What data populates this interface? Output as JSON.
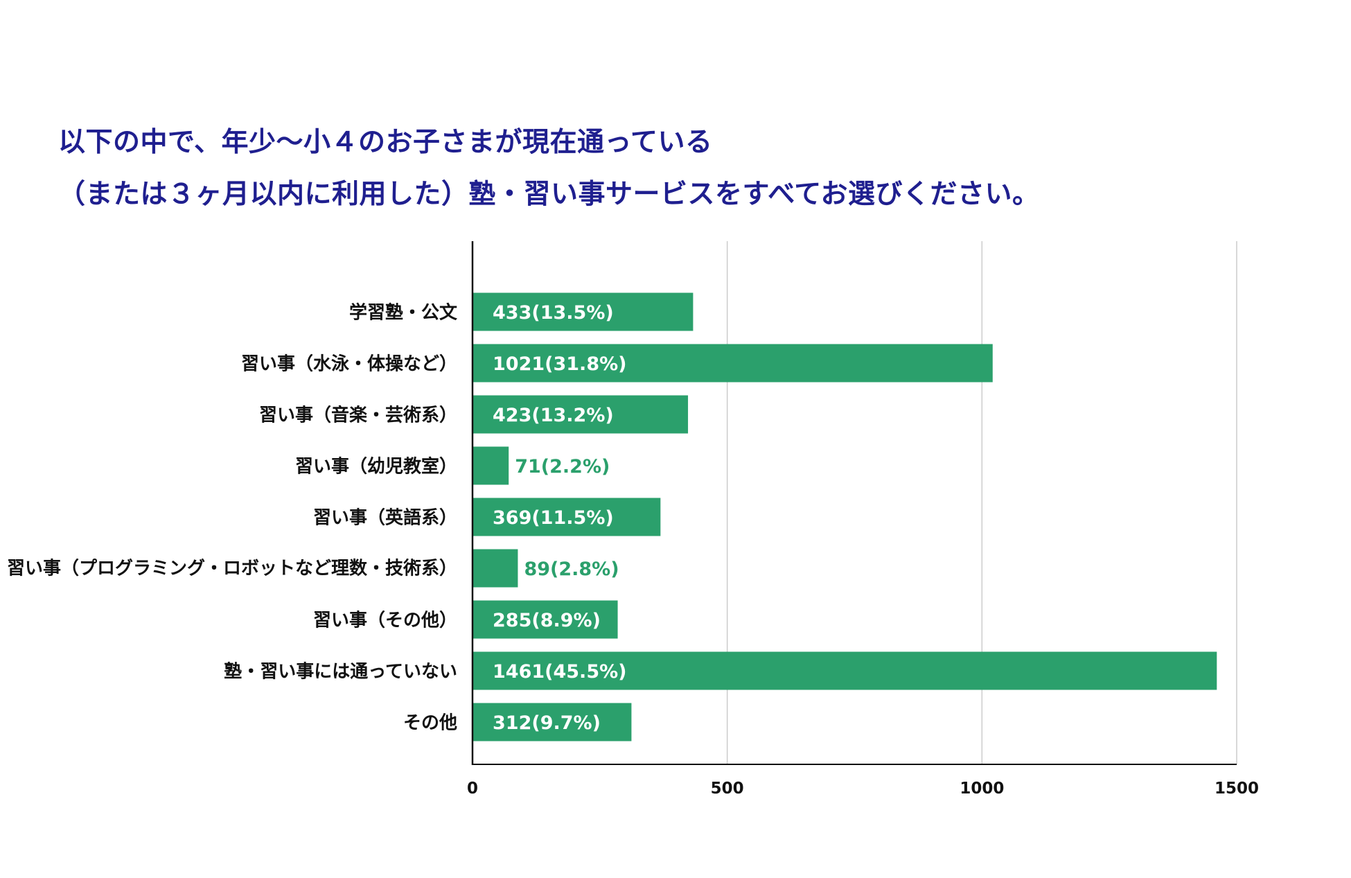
{
  "title_lines": [
    "以下の中で、年少〜小４のお子さまが現在通っている",
    "（または３ヶ月以内に利用した）塾・習い事サービスをすべてお選びください。"
  ],
  "colors": {
    "bar": "#2ba06c",
    "title": "#1f1f8f",
    "label_inside": "#ffffff",
    "label_outside": "#2ba06c",
    "grid": "#cccccc",
    "axis": "#111111"
  },
  "chart_data": {
    "type": "bar",
    "orientation": "horizontal",
    "title": "以下の中で、年少〜小４のお子さまが現在通っている（または３ヶ月以内に利用した）塾・習い事サービスをすべてお選びください。",
    "categories": [
      "学習塾・公文",
      "習い事（水泳・体操など）",
      "習い事（音楽・芸術系）",
      "習い事（幼児教室）",
      "習い事（英語系）",
      "習い事（プログラミング・ロボットなど理数・技術系）",
      "習い事（その他）",
      "塾・習い事には通っていない",
      "その他"
    ],
    "values": [
      433,
      1021,
      423,
      71,
      369,
      89,
      285,
      1461,
      312
    ],
    "data_labels": [
      "433(13.5%)",
      "1021(31.8%)",
      "423(13.2%)",
      "71(2.2%)",
      "369(11.5%)",
      "89(2.8%)",
      "285(8.9%)",
      "1461(45.5%)",
      "312(9.7%)"
    ],
    "xlim": [
      0,
      1500
    ],
    "xticks": [
      0,
      500,
      1000,
      1500
    ],
    "xtick_labels": [
      "0",
      "500",
      "1000",
      "1500"
    ],
    "grid": true,
    "legend": "none",
    "xlabel": "",
    "ylabel": ""
  }
}
